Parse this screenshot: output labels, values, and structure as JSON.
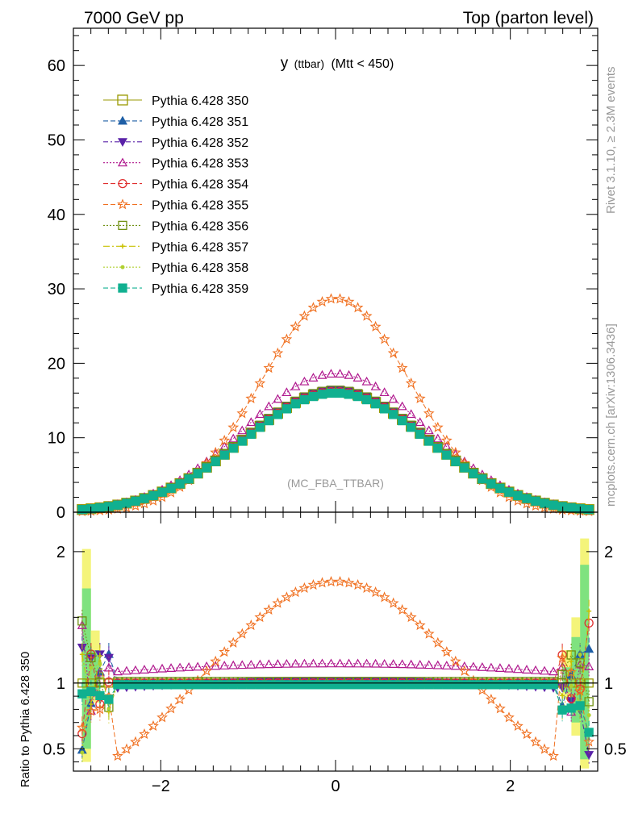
{
  "header": {
    "left": "7000 GeV pp",
    "right": "Top (parton level)"
  },
  "side_labels": {
    "rivet": "Rivet 3.1.10, ≥ 2.3M events",
    "mcplots": "mcplots.cern.ch [arXiv:1306.3436]"
  },
  "plot_title_main": "y",
  "plot_title_sub": "(ttbar)",
  "plot_title_cut": "(Mtt < 450)",
  "analysis_label": "(MC_FBA_TTBAR)",
  "ratio_ylabel": "Ratio to Pythia 6.428 350",
  "colors": {
    "axis": "#000000",
    "band_green": "#7fe27f",
    "band_yellow": "#f4f47a",
    "label_gray": "#999999"
  },
  "chart_data": {
    "type": "line",
    "x_range": [
      -3.0,
      3.0
    ],
    "main_ylim": [
      0,
      65
    ],
    "main_yticks": [
      0,
      10,
      20,
      30,
      40,
      50,
      60
    ],
    "ratio_ylim": [
      0.33,
      2.3
    ],
    "ratio_yticks": [
      0.5,
      1,
      2
    ],
    "ratio_ytick_labels": [
      "0.5",
      "1",
      "2"
    ],
    "xticks": [
      -2,
      0,
      2
    ],
    "xtick_labels": [
      "−2",
      "0",
      "2"
    ],
    "bins": {
      "start": -2.9,
      "end": 2.9,
      "count": 58
    },
    "series": [
      {
        "name": "Pythia 6.428 350",
        "color": "#999900",
        "marker": "square-open",
        "dash": "",
        "peak": 16.2,
        "width": 1.05
      },
      {
        "name": "Pythia 6.428 351",
        "color": "#1f5fa6",
        "marker": "triangle-up",
        "dash": "6,3",
        "peak": 16.3,
        "width": 1.05
      },
      {
        "name": "Pythia 6.428 352",
        "color": "#5a22a8",
        "marker": "triangle-down",
        "dash": "6,3,2,3",
        "peak": 16.5,
        "width": 1.04
      },
      {
        "name": "Pythia 6.428 353",
        "color": "#b0198e",
        "marker": "triangle-up-open",
        "dash": "2,2",
        "peak": 18.6,
        "width": 1.04
      },
      {
        "name": "Pythia 6.428 354",
        "color": "#e03030",
        "marker": "circle-open",
        "dash": "6,3",
        "peak": 16.2,
        "width": 1.05
      },
      {
        "name": "Pythia 6.428 355",
        "color": "#f07020",
        "marker": "star-open",
        "dash": "6,3",
        "peak": 28.7,
        "width": 0.86
      },
      {
        "name": "Pythia 6.428 356",
        "color": "#6f8f10",
        "marker": "square-open",
        "dash": "2,2",
        "peak": 16.4,
        "width": 1.05
      },
      {
        "name": "Pythia 6.428 357",
        "color": "#c8c000",
        "marker": "cross",
        "dash": "8,3,2,3",
        "peak": 16.2,
        "width": 1.05
      },
      {
        "name": "Pythia 6.428 358",
        "color": "#b0d030",
        "marker": "dot",
        "dash": "2,2",
        "peak": 16.1,
        "width": 1.05
      },
      {
        "name": "Pythia 6.428 359",
        "color": "#10b090",
        "marker": "square",
        "dash": "6,3",
        "peak": 16.0,
        "width": 1.05
      }
    ]
  }
}
